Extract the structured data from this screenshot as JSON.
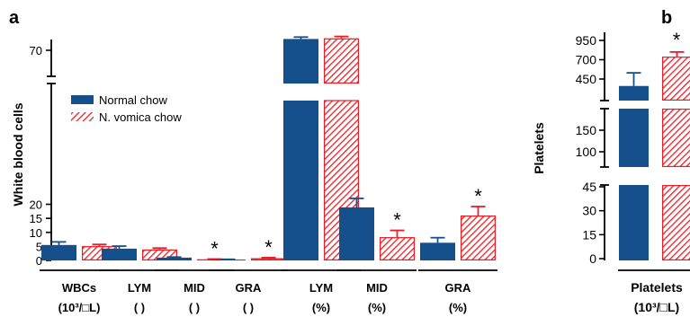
{
  "colors": {
    "normal": "#154f8c",
    "nux": "#ee1c25",
    "axis": "#000000",
    "background": "#ffffff"
  },
  "chart_data": [
    {
      "panel_label": "a",
      "type": "bar",
      "ylabel": "White blood cells",
      "y_ticks": [
        "0",
        "5",
        "10",
        "15",
        "20",
        "70"
      ],
      "y_axis": {
        "lower_range": [
          0,
          23
        ],
        "upper_range": [
          70,
          72
        ],
        "broken": true
      },
      "groups": [
        {
          "label_line1": "WBCs",
          "label_line2": "(10³/□L)"
        },
        {
          "label_line1": "LYM",
          "label_line2": "(    )"
        },
        {
          "label_line1": "MID",
          "label_line2": "(    )"
        },
        {
          "label_line1": "GRA",
          "label_line2": "(    )"
        },
        {
          "label_line1": "LYM",
          "label_line2": "(%)"
        },
        {
          "label_line1": "MID",
          "label_line2": "(%)"
        },
        {
          "label_line1": "GRA",
          "label_line2": "(%)"
        }
      ],
      "series": [
        {
          "name": "Normal chow",
          "values": [
            5.5,
            4.2,
            1.0,
            0.3,
            71.8,
            18.9,
            6.3
          ],
          "errors": [
            1.1,
            0.9,
            0.2,
            0.1,
            0.3,
            3.2,
            1.8
          ]
        },
        {
          "name": "N. vomica chow",
          "values": [
            5.1,
            3.9,
            0.4,
            0.8,
            71.9,
            8.3,
            16.0
          ],
          "errors": [
            0.6,
            0.5,
            0.1,
            0.2,
            0.3,
            2.4,
            3.2
          ]
        }
      ],
      "significance": [
        {
          "group": 2,
          "series": 1,
          "mark": "*"
        },
        {
          "group": 3,
          "series": 1,
          "mark": "*"
        },
        {
          "group": 5,
          "series": 1,
          "mark": "*"
        },
        {
          "group": 6,
          "series": 1,
          "mark": "*"
        }
      ]
    },
    {
      "panel_label": "b",
      "type": "bar",
      "ylabel": "Platelets",
      "y_ticks": [
        "0",
        "15",
        "30",
        "45",
        "100",
        "150",
        "450",
        "700",
        "950"
      ],
      "y_axis": {
        "segments": [
          [
            0,
            55
          ],
          [
            50,
            220
          ],
          [
            210,
            1000
          ]
        ],
        "broken": true
      },
      "groups": [
        {
          "label_line1": "Platelets",
          "label_line2": "(10³/□L)"
        }
      ],
      "series": [
        {
          "name": "Normal chow",
          "values": [
            360
          ],
          "errors": [
            170
          ]
        },
        {
          "name": "N. vomica chow",
          "values": [
            740
          ],
          "errors": [
            60
          ]
        }
      ],
      "significance": [
        {
          "group": 0,
          "series": 1,
          "mark": "*"
        }
      ]
    }
  ]
}
